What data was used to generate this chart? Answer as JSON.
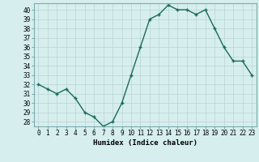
{
  "x": [
    0,
    1,
    2,
    3,
    4,
    5,
    6,
    7,
    8,
    9,
    10,
    11,
    12,
    13,
    14,
    15,
    16,
    17,
    18,
    19,
    20,
    21,
    22,
    23
  ],
  "y": [
    32,
    31.5,
    31,
    31.5,
    30.5,
    29,
    28.5,
    27.5,
    28,
    30,
    33,
    36,
    39,
    39.5,
    40.5,
    40,
    40,
    39.5,
    40,
    38,
    36,
    34.5,
    34.5,
    33
  ],
  "line_color": "#1a6b5a",
  "marker": "+",
  "marker_size": 3.5,
  "bg_color": "#d6eeee",
  "grid_color": "#b8d4d4",
  "xlabel": "Humidex (Indice chaleur)",
  "xlim": [
    -0.5,
    23.5
  ],
  "ylim": [
    27.5,
    40.7
  ],
  "yticks": [
    28,
    29,
    30,
    31,
    32,
    33,
    34,
    35,
    36,
    37,
    38,
    39,
    40
  ],
  "xlabel_fontsize": 6.5,
  "tick_fontsize": 5.5,
  "line_width": 1.0,
  "marker_color": "#1a6b5a"
}
